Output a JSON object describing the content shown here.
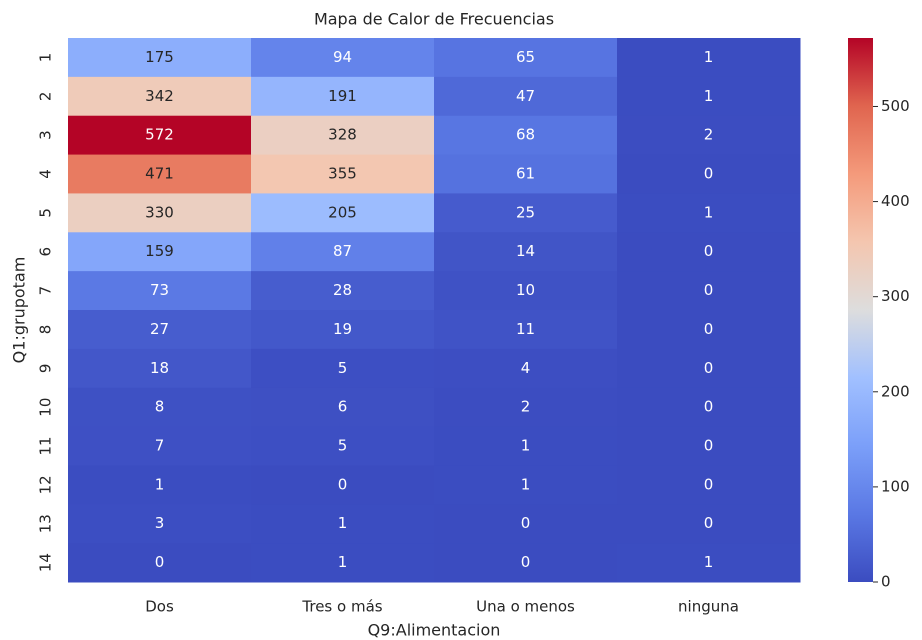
{
  "chart_data": {
    "type": "heatmap",
    "title": "Mapa de Calor de Frecuencias",
    "xlabel": "Q9:Alimentacion",
    "ylabel": "Q1:grupotam",
    "x_categories": [
      "Dos",
      "Tres o más",
      "Una o menos",
      "ninguna"
    ],
    "y_categories": [
      "1",
      "2",
      "3",
      "4",
      "5",
      "6",
      "7",
      "8",
      "9",
      "10",
      "11",
      "12",
      "13",
      "14"
    ],
    "values": [
      [
        175,
        94,
        65,
        1
      ],
      [
        342,
        191,
        47,
        1
      ],
      [
        572,
        328,
        68,
        2
      ],
      [
        471,
        355,
        61,
        0
      ],
      [
        330,
        205,
        25,
        1
      ],
      [
        159,
        87,
        14,
        0
      ],
      [
        73,
        28,
        10,
        0
      ],
      [
        27,
        19,
        11,
        0
      ],
      [
        18,
        5,
        4,
        0
      ],
      [
        8,
        6,
        2,
        0
      ],
      [
        7,
        5,
        1,
        0
      ],
      [
        1,
        0,
        1,
        0
      ],
      [
        3,
        1,
        0,
        0
      ],
      [
        0,
        1,
        0,
        1
      ]
    ],
    "colormap": "coolwarm",
    "clim": [
      0,
      572
    ],
    "cticks": [
      0,
      100,
      200,
      300,
      400,
      500
    ]
  }
}
